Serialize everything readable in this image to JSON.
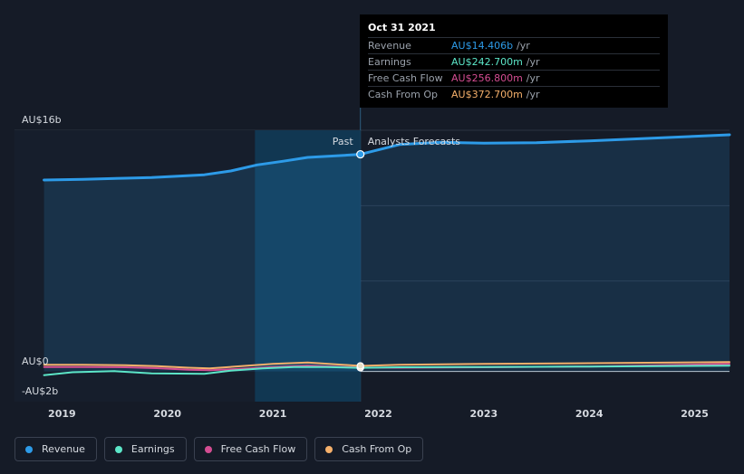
{
  "chart_data": {
    "type": "line",
    "y_labels": {
      "top": "AU$16b",
      "zero": "AU$0",
      "bottom": "-AU$2b"
    },
    "ylim": [
      -2,
      16
    ],
    "xlim": [
      2018.55,
      2025.33
    ],
    "x_ticks": [
      {
        "label": "2019",
        "value": 2019
      },
      {
        "label": "2020",
        "value": 2020
      },
      {
        "label": "2021",
        "value": 2021
      },
      {
        "label": "2022",
        "value": 2022
      },
      {
        "label": "2023",
        "value": 2023
      },
      {
        "label": "2024",
        "value": 2024
      },
      {
        "label": "2025",
        "value": 2025
      }
    ],
    "past_label": "Past",
    "forecast_label": "Analysts Forecasts",
    "divider_x": 2021.83,
    "highlight_start": 2020.83,
    "series": [
      {
        "name": "Revenue",
        "color": "#2d9be8",
        "points": [
          [
            2018.83,
            12.7
          ],
          [
            2019.2,
            12.75
          ],
          [
            2019.6,
            12.82
          ],
          [
            2019.85,
            12.86
          ],
          [
            2020.1,
            12.95
          ],
          [
            2020.35,
            13.05
          ],
          [
            2020.6,
            13.3
          ],
          [
            2020.85,
            13.7
          ],
          [
            2021.1,
            13.95
          ],
          [
            2021.33,
            14.2
          ],
          [
            2021.6,
            14.3
          ],
          [
            2021.83,
            14.406
          ],
          [
            2022.2,
            15.05
          ],
          [
            2022.6,
            15.2
          ],
          [
            2023,
            15.15
          ],
          [
            2023.5,
            15.18
          ],
          [
            2024,
            15.3
          ],
          [
            2024.5,
            15.45
          ],
          [
            2025.33,
            15.7
          ]
        ]
      },
      {
        "name": "Earnings",
        "color": "#5ce6c8",
        "points": [
          [
            2018.83,
            -0.25
          ],
          [
            2019.1,
            -0.05
          ],
          [
            2019.5,
            0.02
          ],
          [
            2019.85,
            -0.12
          ],
          [
            2020.1,
            -0.14
          ],
          [
            2020.35,
            -0.15
          ],
          [
            2020.6,
            0.05
          ],
          [
            2020.9,
            0.2
          ],
          [
            2021.2,
            0.3
          ],
          [
            2021.5,
            0.3
          ],
          [
            2021.83,
            0.2427
          ],
          [
            2022.2,
            0.28
          ],
          [
            2023,
            0.3
          ],
          [
            2024,
            0.33
          ],
          [
            2025.33,
            0.38
          ]
        ]
      },
      {
        "name": "Free Cash Flow",
        "color": "#d44d92",
        "points": [
          [
            2018.83,
            0.3
          ],
          [
            2019.2,
            0.3
          ],
          [
            2019.6,
            0.28
          ],
          [
            2019.9,
            0.22
          ],
          [
            2020.2,
            0.12
          ],
          [
            2020.4,
            0.08
          ],
          [
            2020.7,
            0.18
          ],
          [
            2021,
            0.3
          ],
          [
            2021.33,
            0.38
          ],
          [
            2021.83,
            0.2568
          ],
          [
            2022.2,
            0.25
          ],
          [
            2023,
            0.28
          ],
          [
            2024,
            0.33
          ],
          [
            2025.33,
            0.5
          ]
        ]
      },
      {
        "name": "Cash From Op",
        "color": "#f5b06b",
        "points": [
          [
            2018.83,
            0.45
          ],
          [
            2019.2,
            0.45
          ],
          [
            2019.6,
            0.42
          ],
          [
            2019.9,
            0.35
          ],
          [
            2020.2,
            0.25
          ],
          [
            2020.4,
            0.2
          ],
          [
            2020.7,
            0.35
          ],
          [
            2021,
            0.5
          ],
          [
            2021.33,
            0.6
          ],
          [
            2021.83,
            0.3727
          ],
          [
            2022.2,
            0.45
          ],
          [
            2023,
            0.5
          ],
          [
            2024,
            0.55
          ],
          [
            2025.33,
            0.62
          ]
        ]
      }
    ]
  },
  "tooltip": {
    "date": "Oct 31 2021",
    "rows": [
      {
        "label": "Revenue",
        "value": "AU$14.406b",
        "unit": "/yr",
        "color": "#2d9be8"
      },
      {
        "label": "Earnings",
        "value": "AU$242.700m",
        "unit": "/yr",
        "color": "#5ce6c8"
      },
      {
        "label": "Free Cash Flow",
        "value": "AU$256.800m",
        "unit": "/yr",
        "color": "#d44d92"
      },
      {
        "label": "Cash From Op",
        "value": "AU$372.700m",
        "unit": "/yr",
        "color": "#f5b06b"
      }
    ]
  },
  "legend": [
    {
      "label": "Revenue",
      "color": "#2d9be8"
    },
    {
      "label": "Earnings",
      "color": "#5ce6c8"
    },
    {
      "label": "Free Cash Flow",
      "color": "#d44d92"
    },
    {
      "label": "Cash From Op",
      "color": "#f5b06b"
    }
  ]
}
